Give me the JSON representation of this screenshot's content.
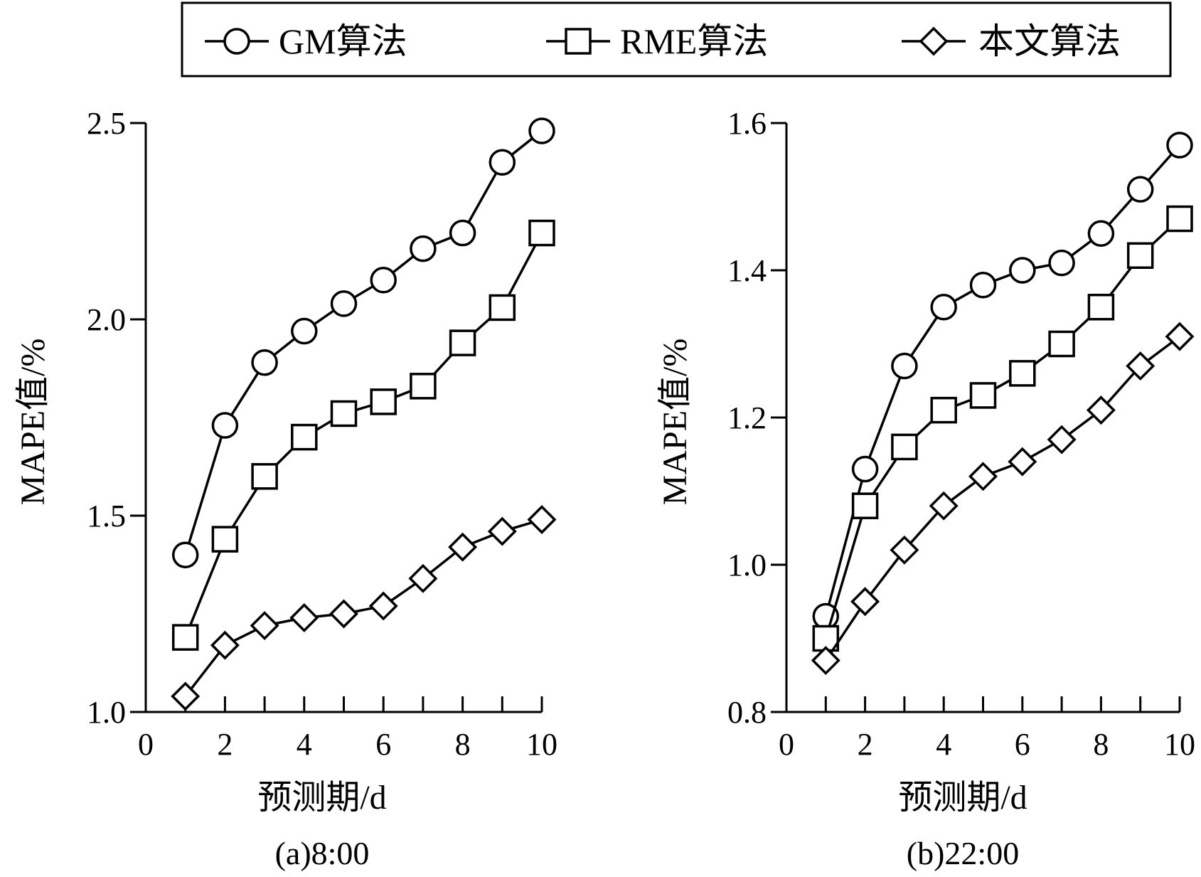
{
  "legend": {
    "items": [
      {
        "label": "GM算法",
        "marker": "circle"
      },
      {
        "label": "RME算法",
        "marker": "square"
      },
      {
        "label": "本文算法",
        "marker": "diamond"
      }
    ]
  },
  "chart_data": [
    {
      "type": "line",
      "caption": "(a)8:00",
      "xlabel": "预测期/d",
      "ylabel": "MAPE值/%",
      "xlim": [
        0,
        10
      ],
      "ylim": [
        1.0,
        2.5
      ],
      "xticks": [
        0,
        2,
        4,
        6,
        8,
        10
      ],
      "xtick_labels": [
        "0",
        "2",
        "4",
        "6",
        "8",
        "10"
      ],
      "yticks": [
        1.0,
        1.5,
        2.0,
        2.5
      ],
      "ytick_labels": [
        "1.0",
        "1.5",
        "2.0",
        "2.5"
      ],
      "x": [
        1,
        2,
        3,
        4,
        5,
        6,
        7,
        8,
        9,
        10
      ],
      "series": [
        {
          "name": "GM算法",
          "marker": "circle",
          "values": [
            1.4,
            1.73,
            1.89,
            1.97,
            2.04,
            2.1,
            2.18,
            2.22,
            2.4,
            2.48
          ]
        },
        {
          "name": "RME算法",
          "marker": "square",
          "values": [
            1.19,
            1.44,
            1.6,
            1.7,
            1.76,
            1.79,
            1.83,
            1.94,
            2.03,
            2.22
          ]
        },
        {
          "name": "本文算法",
          "marker": "diamond",
          "values": [
            1.04,
            1.17,
            1.22,
            1.24,
            1.25,
            1.27,
            1.34,
            1.42,
            1.46,
            1.49
          ]
        }
      ],
      "grid": false,
      "legend_position": "top"
    },
    {
      "type": "line",
      "caption": "(b)22:00",
      "xlabel": "预测期/d",
      "ylabel": "MAPE值/%",
      "xlim": [
        0,
        10
      ],
      "ylim": [
        0.8,
        1.6
      ],
      "xticks": [
        0,
        2,
        4,
        6,
        8,
        10
      ],
      "xtick_labels": [
        "0",
        "2",
        "4",
        "6",
        "8",
        "10"
      ],
      "yticks": [
        0.8,
        1.0,
        1.2,
        1.4,
        1.6
      ],
      "ytick_labels": [
        "0.8",
        "1.0",
        "1.2",
        "1.4",
        "1.6"
      ],
      "x": [
        1,
        2,
        3,
        4,
        5,
        6,
        7,
        8,
        9,
        10
      ],
      "series": [
        {
          "name": "GM算法",
          "marker": "circle",
          "values": [
            0.93,
            1.13,
            1.27,
            1.35,
            1.38,
            1.4,
            1.41,
            1.45,
            1.51,
            1.57
          ]
        },
        {
          "name": "RME算法",
          "marker": "square",
          "values": [
            0.9,
            1.08,
            1.16,
            1.21,
            1.23,
            1.26,
            1.3,
            1.35,
            1.42,
            1.47
          ]
        },
        {
          "name": "本文算法",
          "marker": "diamond",
          "values": [
            0.87,
            0.95,
            1.02,
            1.08,
            1.12,
            1.14,
            1.17,
            1.21,
            1.27,
            1.31
          ]
        }
      ],
      "grid": false,
      "legend_position": "top"
    }
  ]
}
